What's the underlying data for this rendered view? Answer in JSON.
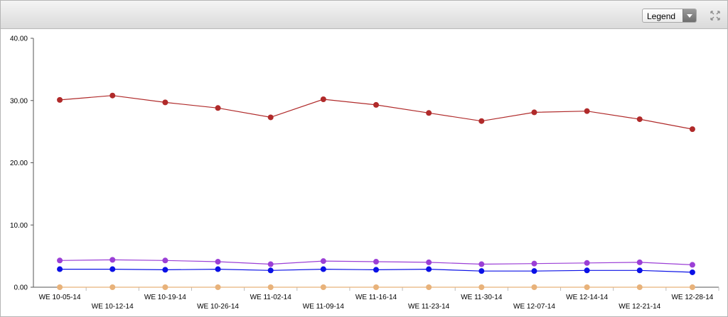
{
  "toolbar": {
    "legend_label": "Legend",
    "legend_icon": "chevron-down-icon",
    "expand_icon": "expand-arrows-icon"
  },
  "chart_data": {
    "type": "line",
    "title": "",
    "xlabel": "",
    "ylabel": "",
    "ylim": [
      0,
      40
    ],
    "y_ticks": [
      "0.00",
      "10.00",
      "20.00",
      "30.00",
      "40.00"
    ],
    "grid": false,
    "legend": "hidden (Legend dropdown)",
    "categories": [
      "WE 10-05-14",
      "WE 10-12-14",
      "WE 10-19-14",
      "WE 10-26-14",
      "WE 11-02-14",
      "WE 11-09-14",
      "WE 11-16-14",
      "WE 11-23-14",
      "WE 11-30-14",
      "WE 12-07-14",
      "WE 12-14-14",
      "WE 12-21-14",
      "WE 12-28-14"
    ],
    "series": [
      {
        "color": "#b02a2a",
        "values": [
          30.1,
          30.8,
          29.7,
          28.8,
          27.3,
          30.2,
          29.3,
          28.0,
          26.7,
          28.1,
          28.3,
          27.0,
          25.4
        ]
      },
      {
        "color": "#9b3fd6",
        "values": [
          4.3,
          4.4,
          4.3,
          4.1,
          3.7,
          4.2,
          4.1,
          4.0,
          3.7,
          3.8,
          3.9,
          4.0,
          3.6
        ]
      },
      {
        "color": "#0a10e6",
        "values": [
          2.9,
          2.9,
          2.8,
          2.9,
          2.7,
          2.9,
          2.8,
          2.9,
          2.6,
          2.6,
          2.7,
          2.7,
          2.4
        ]
      },
      {
        "color": "#e8b27a",
        "values": [
          0.0,
          0.0,
          0.0,
          0.0,
          0.0,
          0.0,
          0.0,
          0.0,
          0.0,
          0.0,
          0.0,
          0.0,
          0.0
        ]
      }
    ]
  }
}
